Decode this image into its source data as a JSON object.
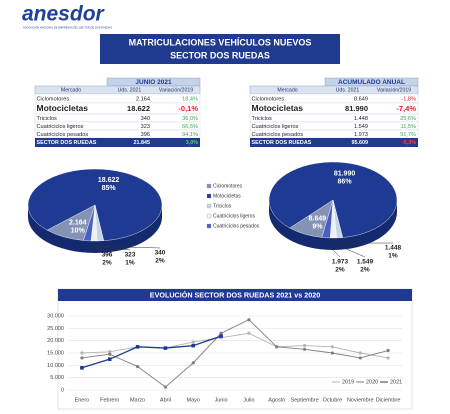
{
  "header": {
    "logo": "anesdor",
    "tagline": "ASOCIACIÓN NACIONAL DE EMPRESAS DEL SECTOR DE DOS RUEDAS",
    "title": "MATRICULACIONES VEHÍCULOS NUEVOS",
    "subtitle": "SECTOR DOS RUEDAS"
  },
  "tables": [
    {
      "title": "JUNIO 2021",
      "columns": [
        "Mercado",
        "Uds. 2021",
        "Variación/2019"
      ],
      "rows": [
        [
          "Ciclomotores",
          "2.164",
          "18,4%"
        ],
        [
          "Motocicletas",
          "18.622",
          "-0,1%"
        ],
        [
          "Triciclos",
          "340",
          "36,0%"
        ],
        [
          "Cuatriciclos ligeros",
          "323",
          "66,5%"
        ],
        [
          "Cuatriciclos pesados",
          "396",
          "94,1%"
        ]
      ],
      "total": [
        "SECTOR DOS RUEDAS",
        "21.845",
        "3,0%"
      ]
    },
    {
      "title": "ACUMULADO ANUAL",
      "columns": [
        "Mercado",
        "Uds. 2021",
        "Variación/2019"
      ],
      "rows": [
        [
          "Ciclomotores",
          "8.649",
          "-1,8%"
        ],
        [
          "Motocicletas",
          "81.990",
          "-7,4%"
        ],
        [
          "Triciclos",
          "1.448",
          "25,6%"
        ],
        [
          "Cuatriciclos ligeros",
          "1.549",
          "11,5%"
        ],
        [
          "Cuatriciclos pesados",
          "1.973",
          "91,7%"
        ]
      ],
      "total": [
        "SECTOR DOS RUEDAS",
        "95.609",
        "-5,3%"
      ]
    }
  ],
  "chart_data": [
    {
      "type": "pie",
      "categories": [
        "Ciclomotores",
        "Motocicletas",
        "Triciclos",
        "Cuatriciclos ligeros",
        "Cuatriciclos pesados"
      ],
      "values": [
        2164,
        18622,
        340,
        323,
        396
      ],
      "value_labels": [
        "2.164",
        "18.622",
        "340",
        "323",
        "396"
      ],
      "shares": [
        10,
        85,
        2,
        1,
        2
      ],
      "share_labels": [
        "10%",
        "85%",
        "2%",
        "1%",
        "2%"
      ],
      "colors": [
        "#8492b6",
        "#1f3a93",
        "#c9d3e6",
        "#eef1f7",
        "#4a5fc4"
      ],
      "legend": "right"
    },
    {
      "type": "pie",
      "values": [
        8649,
        81990,
        1448,
        1549,
        1973
      ],
      "value_labels": [
        "8.649",
        "81.990",
        "1.448",
        "1.549",
        "1.973"
      ],
      "shares": [
        9,
        86,
        1,
        2,
        2
      ],
      "share_labels": [
        "9%",
        "86%",
        "1%",
        "2%",
        "2%"
      ],
      "colors": [
        "#8492b6",
        "#1f3a93",
        "#c9d3e6",
        "#eef1f7",
        "#4a5fc4"
      ]
    },
    {
      "type": "line",
      "title": "EVOLUCIÓN SECTOR DOS RUEDAS 2021 vs 2020",
      "categories": [
        "Enero",
        "Febrero",
        "Marzo",
        "Abril",
        "Mayo",
        "Junio",
        "Julio",
        "Agosto",
        "Septiembre",
        "Octubre",
        "Noviembre",
        "Diciembre"
      ],
      "series": [
        {
          "name": "2019",
          "color": "#b4b4b4",
          "values": [
            15000,
            15500,
            17500,
            17000,
            19500,
            21200,
            23000,
            17500,
            18000,
            17500,
            15000,
            13000
          ]
        },
        {
          "name": "2020",
          "color": "#7f7f7f",
          "values": [
            13000,
            14500,
            9500,
            1200,
            11000,
            23000,
            28500,
            17500,
            16500,
            15000,
            13000,
            16000
          ]
        },
        {
          "name": "2021",
          "color": "#1f3a93",
          "values": [
            9000,
            12500,
            17500,
            17000,
            18000,
            21845,
            null,
            null,
            null,
            null,
            null,
            null
          ]
        }
      ],
      "ylim": [
        0,
        30000
      ],
      "yticks": [
        0,
        {
          "value": 5000,
          "label": "5.000"
        },
        {
          "value": 10000,
          "label": "10.000"
        },
        {
          "value": 15000,
          "label": "15.000"
        },
        {
          "value": 20000,
          "label": "20.000"
        },
        {
          "value": 25000,
          "label": "25.000"
        },
        {
          "value": 30000,
          "label": "30.000"
        }
      ],
      "grid": true,
      "legend": "bottom-right"
    }
  ]
}
